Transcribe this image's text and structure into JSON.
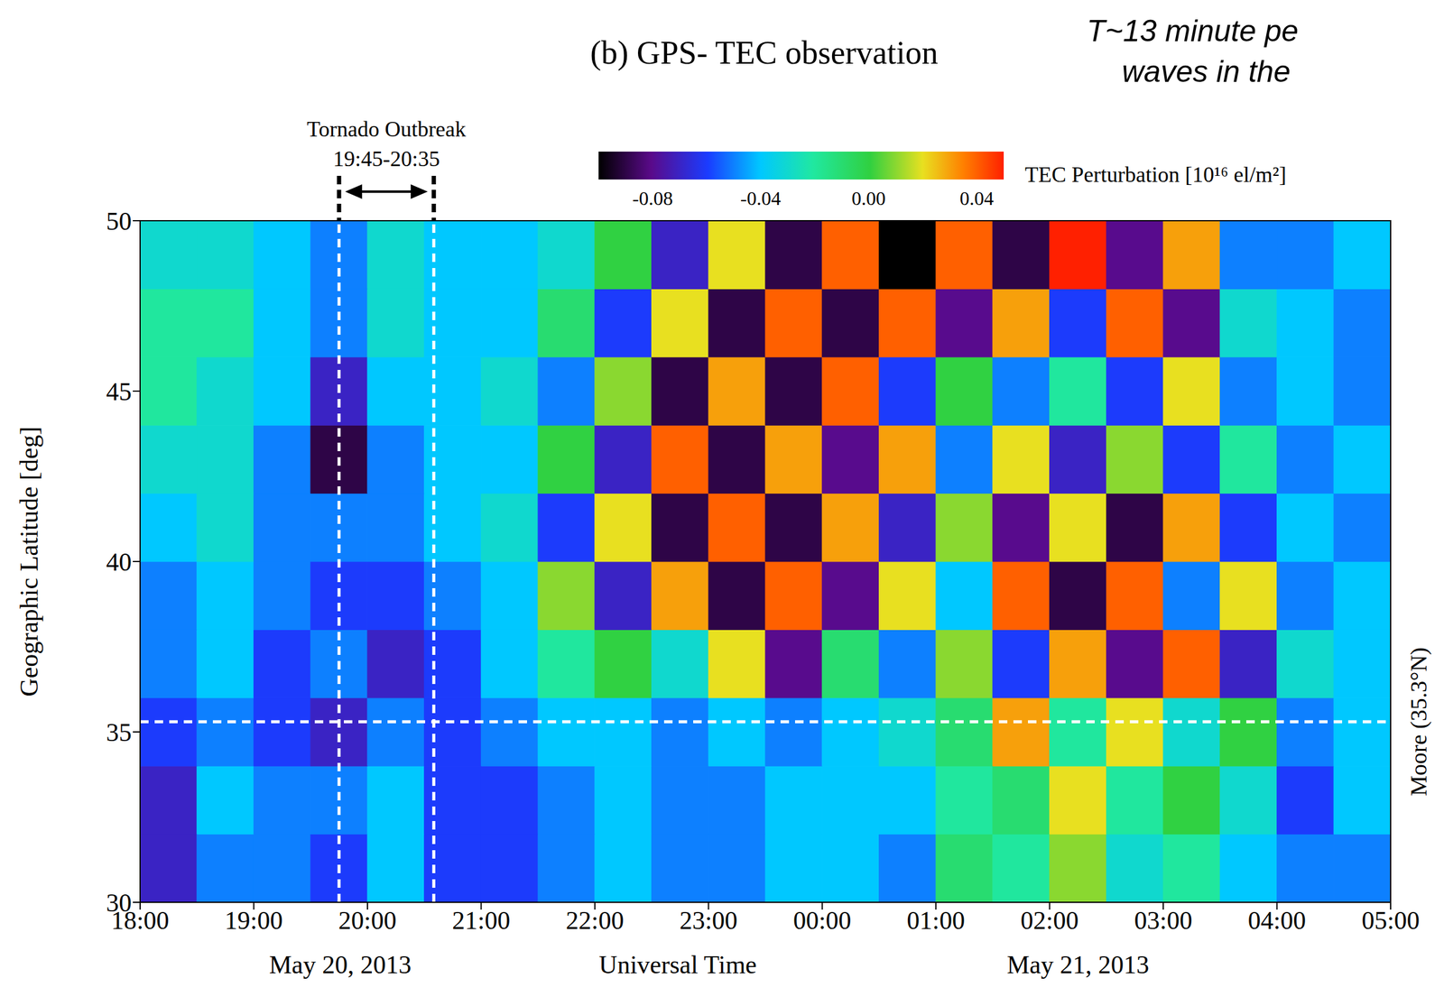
{
  "chart_data": {
    "type": "heatmap",
    "title": "(b) GPS- TEC observation",
    "x_label": "Universal Time",
    "y_label": "Geographic Latitude [deg]",
    "date_labels": [
      "May 20, 2013",
      "May 21, 2013"
    ],
    "xlim": [
      18,
      29
    ],
    "xticks": [
      {
        "value": 18,
        "label": "18:00"
      },
      {
        "value": 19,
        "label": "19:00"
      },
      {
        "value": 20,
        "label": "20:00"
      },
      {
        "value": 21,
        "label": "21:00"
      },
      {
        "value": 22,
        "label": "22:00"
      },
      {
        "value": 23,
        "label": "23:00"
      },
      {
        "value": 24,
        "label": "00:00"
      },
      {
        "value": 25,
        "label": "01:00"
      },
      {
        "value": 26,
        "label": "02:00"
      },
      {
        "value": 27,
        "label": "03:00"
      },
      {
        "value": 28,
        "label": "04:00"
      },
      {
        "value": 29,
        "label": "05:00"
      }
    ],
    "ylim": [
      30,
      50
    ],
    "yticks": [
      30,
      35,
      40,
      45,
      50
    ],
    "x_bins": [
      18,
      18.5,
      19,
      19.5,
      20,
      20.5,
      21,
      21.5,
      22,
      22.5,
      23,
      23.5,
      24,
      24.5,
      25,
      25.5,
      26,
      26.5,
      27,
      27.5,
      28,
      28.5,
      29
    ],
    "y_bins": [
      30,
      32,
      34,
      36,
      38,
      40,
      42,
      44,
      46,
      48,
      50
    ],
    "values": [
      [
        -0.07,
        -0.05,
        -0.05,
        -0.06,
        -0.04,
        -0.06,
        -0.06,
        -0.05,
        -0.04,
        -0.05,
        -0.05,
        -0.04,
        -0.04,
        -0.05,
        -0.01,
        -0.02,
        0.01,
        -0.03,
        -0.02,
        -0.04,
        -0.05,
        -0.05
      ],
      [
        -0.07,
        -0.04,
        -0.05,
        -0.05,
        -0.04,
        -0.06,
        -0.06,
        -0.05,
        -0.04,
        -0.05,
        -0.05,
        -0.04,
        -0.04,
        -0.04,
        -0.02,
        -0.01,
        0.02,
        -0.02,
        0,
        -0.03,
        -0.06,
        -0.04
      ],
      [
        -0.06,
        -0.05,
        -0.06,
        -0.07,
        -0.05,
        -0.06,
        -0.05,
        -0.04,
        -0.04,
        -0.05,
        -0.04,
        -0.05,
        -0.04,
        -0.03,
        -0.01,
        0.03,
        -0.02,
        0.02,
        -0.03,
        0,
        -0.05,
        -0.04
      ],
      [
        -0.05,
        -0.04,
        -0.06,
        -0.05,
        -0.07,
        -0.06,
        -0.04,
        -0.02,
        0,
        -0.03,
        0.02,
        -0.08,
        -0.01,
        -0.05,
        0.01,
        -0.06,
        0.03,
        -0.08,
        0.04,
        -0.07,
        -0.03,
        -0.04
      ],
      [
        -0.05,
        -0.04,
        -0.05,
        -0.06,
        -0.06,
        -0.05,
        -0.04,
        0.01,
        -0.07,
        0.03,
        -0.09,
        0.04,
        -0.08,
        0.02,
        -0.04,
        0.04,
        -0.09,
        0.04,
        -0.05,
        0.02,
        -0.05,
        -0.04
      ],
      [
        -0.04,
        -0.03,
        -0.05,
        -0.05,
        -0.05,
        -0.04,
        -0.03,
        -0.06,
        0.02,
        -0.09,
        0.04,
        -0.09,
        0.03,
        -0.07,
        0.01,
        -0.08,
        0.02,
        -0.09,
        0.03,
        -0.06,
        -0.04,
        -0.05
      ],
      [
        -0.03,
        -0.03,
        -0.05,
        -0.09,
        -0.05,
        -0.04,
        -0.04,
        0,
        -0.07,
        0.04,
        -0.09,
        0.03,
        -0.08,
        0.03,
        -0.05,
        0.02,
        -0.07,
        0.01,
        -0.06,
        -0.02,
        -0.05,
        -0.04
      ],
      [
        -0.02,
        -0.03,
        -0.04,
        -0.07,
        -0.04,
        -0.04,
        -0.03,
        -0.05,
        0.01,
        -0.09,
        0.03,
        -0.09,
        0.04,
        -0.06,
        0,
        -0.05,
        -0.02,
        -0.06,
        0.02,
        -0.05,
        -0.04,
        -0.05
      ],
      [
        -0.02,
        -0.02,
        -0.04,
        -0.05,
        -0.03,
        -0.04,
        -0.04,
        -0.01,
        -0.06,
        0.02,
        -0.09,
        0.04,
        -0.09,
        0.04,
        -0.08,
        0.03,
        -0.06,
        0.04,
        -0.08,
        -0.03,
        -0.04,
        -0.05
      ],
      [
        -0.03,
        -0.03,
        -0.04,
        -0.05,
        -0.03,
        -0.04,
        -0.04,
        -0.03,
        0,
        -0.07,
        0.02,
        -0.09,
        0.04,
        -0.1,
        0.04,
        -0.09,
        0.05,
        -0.08,
        0.03,
        -0.05,
        -0.05,
        -0.04
      ]
    ],
    "colorbar": {
      "label": "TEC Perturbation [10¹⁶ el/m²]",
      "range": [
        -0.1,
        0.05
      ],
      "ticks": [
        -0.08,
        -0.04,
        {
          "value": 0,
          "label": "0.00"
        },
        0.04
      ]
    },
    "annotations": {
      "event": {
        "label": "Tornado Outbreak",
        "time_label": "19:45-20:35",
        "x": [
          19.75,
          20.5833
        ]
      },
      "reference": {
        "label": "Moore (35.3°N)",
        "y": 35.3
      },
      "note": [
        "T~13 minute pe",
        "waves in the"
      ]
    }
  }
}
